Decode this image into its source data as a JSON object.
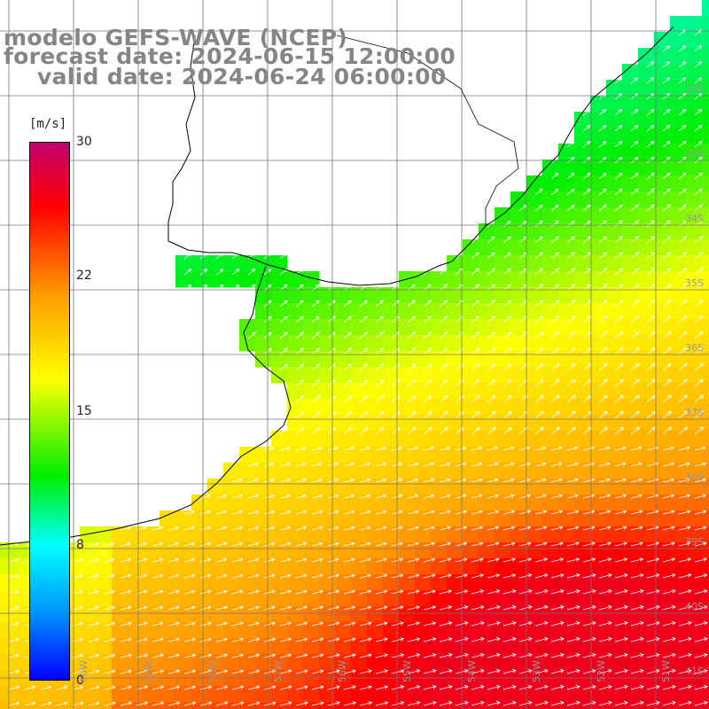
{
  "header": {
    "model": "modelo GEFS-WAVE (NCEP)",
    "forecast": "forecast date: 2024-06-15 12:00:00",
    "valid": "valid date: 2024-06-24 06:00:00"
  },
  "colorbar": {
    "unit": "[m/s]",
    "ticks": [
      "30",
      "22",
      "15",
      "8",
      "0"
    ],
    "colors": [
      "#c0006e",
      "#ff0000",
      "#ff9900",
      "#ffff00",
      "#00ee00",
      "#00ffff",
      "#0099ff",
      "#0000ff"
    ]
  },
  "lat_labels": [
    "32S",
    "33S",
    "34S",
    "35S",
    "36S",
    "37S",
    "38S",
    "39S",
    "40S",
    "41S"
  ],
  "lon_labels": [
    "60W",
    "59W",
    "58W",
    "57W",
    "56W",
    "55W",
    "54W",
    "53W",
    "52W",
    "51W"
  ]
}
